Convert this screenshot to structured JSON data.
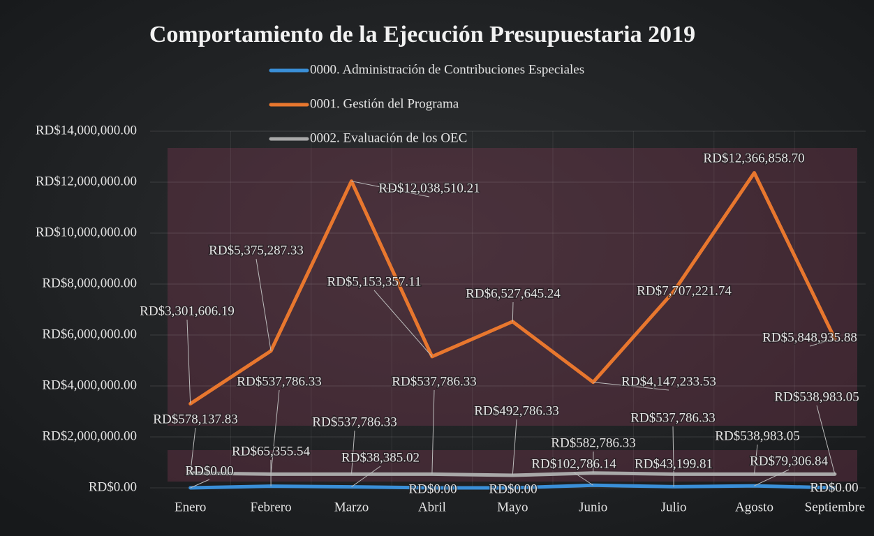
{
  "chart_data": {
    "type": "line",
    "title": "Comportamiento de la Ejecución Presupuestaria 2019",
    "categories": [
      "Enero",
      "Febrero",
      "Marzo",
      "Abril",
      "Mayo",
      "Junio",
      "Julio",
      "Agosto",
      "Septiembre"
    ],
    "series": [
      {
        "name": "0000. Administración de Contribuciones Especiales",
        "color": "#3a8fd8",
        "values": [
          0,
          65355.54,
          38385.02,
          0,
          0,
          102786.14,
          43199.81,
          79306.84,
          0
        ],
        "value_labels": [
          "RD$0.00",
          "RD$65,355.54",
          "RD$38,385.02",
          "RD$0.00",
          "RD$0.00",
          "RD$102,786.14",
          "RD$43,199.81",
          "RD$79,306.84",
          "RD$0.00"
        ]
      },
      {
        "name": "0001. Gestión del Programa",
        "color": "#e8772e",
        "values": [
          3301606.19,
          5375287.33,
          12038510.21,
          5153357.11,
          6527645.24,
          4147233.53,
          7707221.74,
          12366858.7,
          5848935.88
        ],
        "value_labels": [
          "RD$3,301,606.19",
          "RD$5,375,287.33",
          "RD$12,038,510.21",
          "RD$5,153,357.11",
          "RD$6,527,645.24",
          "RD$4,147,233.53",
          "RD$7,707,221.74",
          "RD$12,366,858.70",
          "RD$5,848,935.88"
        ]
      },
      {
        "name": "0002. Evaluación de los OEC",
        "color": "#a9a9a9",
        "values": [
          578137.83,
          537786.33,
          537786.33,
          537786.33,
          492786.33,
          582786.33,
          537786.33,
          538983.05,
          538983.05
        ],
        "value_labels": [
          "RD$578,137.83",
          "RD$537,786.33",
          "RD$537,786.33",
          "RD$537,786.33",
          "RD$492,786.33",
          "RD$582,786.33",
          "RD$537,786.33",
          "RD$538,983.05",
          "RD$538,983.05"
        ]
      }
    ],
    "ylim": [
      0,
      14000000
    ],
    "yticks": [
      {
        "value": 0,
        "label": "RD$0.00"
      },
      {
        "value": 2000000,
        "label": "RD$2,000,000.00"
      },
      {
        "value": 4000000,
        "label": "RD$4,000,000.00"
      },
      {
        "value": 6000000,
        "label": "RD$6,000,000.00"
      },
      {
        "value": 8000000,
        "label": "RD$8,000,000.00"
      },
      {
        "value": 10000000,
        "label": "RD$10,000,000.00"
      },
      {
        "value": 12000000,
        "label": "RD$12,000,000.00"
      },
      {
        "value": 14000000,
        "label": "RD$14,000,000.00"
      }
    ],
    "grid": true,
    "legend": "top"
  }
}
